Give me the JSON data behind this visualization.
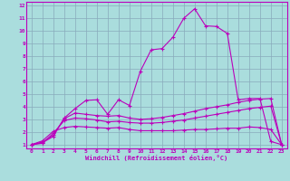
{
  "xlabel": "Windchill (Refroidissement éolien,°C)",
  "xlim": [
    -0.5,
    23.5
  ],
  "ylim": [
    0.7,
    12.3
  ],
  "xticks": [
    0,
    1,
    2,
    3,
    4,
    5,
    6,
    7,
    8,
    9,
    10,
    11,
    12,
    13,
    14,
    15,
    16,
    17,
    18,
    19,
    20,
    21,
    22,
    23
  ],
  "yticks": [
    1,
    2,
    3,
    4,
    5,
    6,
    7,
    8,
    9,
    10,
    11,
    12
  ],
  "bg_color": "#aadddd",
  "line_color": "#bb00bb",
  "grid_color": "#88aabb",
  "line1_x": [
    0,
    1,
    2,
    3,
    4,
    5,
    6,
    7,
    8,
    9,
    10,
    11,
    12,
    13,
    14,
    15,
    16,
    17,
    18,
    19,
    20,
    21,
    22,
    23
  ],
  "line1_y": [
    1.0,
    1.15,
    1.65,
    3.1,
    3.85,
    4.5,
    4.55,
    3.4,
    4.55,
    4.1,
    6.8,
    8.5,
    8.6,
    9.5,
    11.0,
    11.75,
    10.4,
    10.35,
    9.8,
    4.55,
    4.65,
    4.65,
    1.25,
    1.0
  ],
  "line2_x": [
    0,
    1,
    2,
    3,
    4,
    5,
    6,
    7,
    8,
    9,
    10,
    11,
    12,
    13,
    14,
    15,
    16,
    17,
    18,
    19,
    20,
    21,
    22,
    23
  ],
  "line2_y": [
    1.0,
    1.2,
    1.75,
    3.05,
    3.5,
    3.4,
    3.3,
    3.25,
    3.3,
    3.1,
    3.0,
    3.05,
    3.15,
    3.3,
    3.45,
    3.65,
    3.85,
    4.0,
    4.15,
    4.35,
    4.5,
    4.6,
    4.65,
    1.0
  ],
  "line3_x": [
    0,
    1,
    2,
    3,
    4,
    5,
    6,
    7,
    8,
    9,
    10,
    11,
    12,
    13,
    14,
    15,
    16,
    17,
    18,
    19,
    20,
    21,
    22,
    23
  ],
  "line3_y": [
    1.0,
    1.1,
    1.9,
    2.9,
    3.1,
    3.05,
    2.95,
    2.8,
    2.85,
    2.75,
    2.7,
    2.7,
    2.75,
    2.85,
    2.95,
    3.1,
    3.25,
    3.4,
    3.55,
    3.7,
    3.85,
    3.95,
    4.05,
    1.0
  ],
  "line4_x": [
    0,
    1,
    2,
    3,
    4,
    5,
    6,
    7,
    8,
    9,
    10,
    11,
    12,
    13,
    14,
    15,
    16,
    17,
    18,
    19,
    20,
    21,
    22,
    23
  ],
  "line4_y": [
    1.0,
    1.3,
    2.05,
    2.35,
    2.45,
    2.4,
    2.35,
    2.3,
    2.35,
    2.2,
    2.1,
    2.1,
    2.1,
    2.1,
    2.15,
    2.2,
    2.2,
    2.25,
    2.3,
    2.3,
    2.4,
    2.35,
    2.2,
    1.0
  ]
}
